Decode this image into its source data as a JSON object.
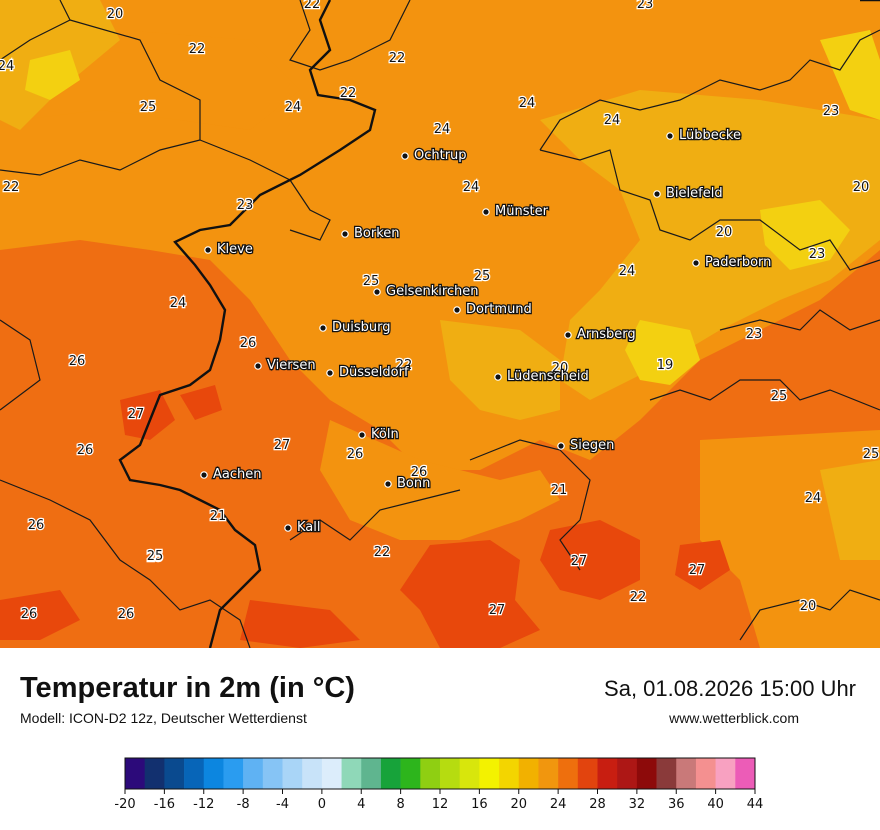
{
  "header": {
    "title": "Temperatur in 2m (in °C)",
    "model": "Modell: ICON-D2 12z, Deutscher Wetterdienst",
    "datetime": "Sa, 01.08.2026 15:00 Uhr",
    "website": "www.wetterblick.com"
  },
  "cities": [
    "Lübbecke",
    "Ochtrup",
    "Bielefeld",
    "Münster",
    "Paderborn",
    "Borken",
    "Kleve",
    "Gelsenkirchen",
    "Dortmund",
    "Duisburg",
    "Arnsberg",
    "Viersen",
    "Düsseldorf",
    "Lüdenscheid",
    "Köln",
    "Siegen",
    "Aachen",
    "Bonn",
    "Kall"
  ],
  "temperature_labels": [
    "22",
    "20",
    "23",
    "24",
    "22",
    "22",
    "25",
    "24",
    "24",
    "23",
    "24",
    "24",
    "22",
    "22",
    "23",
    "24",
    "20",
    "20",
    "23",
    "25",
    "24",
    "25",
    "24",
    "23",
    "26",
    "26",
    "19",
    "22",
    "20",
    "25",
    "27",
    "25",
    "26",
    "27",
    "26",
    "26",
    "25",
    "24",
    "21",
    "26",
    "21",
    "22",
    "27",
    "25",
    "26",
    "27",
    "22",
    "26",
    "27",
    "20"
  ],
  "legend": {
    "ticks": [
      "-20",
      "-16",
      "-12",
      "-8",
      "-4",
      "0",
      "4",
      "8",
      "12",
      "16",
      "20",
      "24",
      "28",
      "32",
      "36",
      "40",
      "44"
    ],
    "colors": [
      "#2c0a7a",
      "#12306f",
      "#0a4a8f",
      "#0765b8",
      "#0c86e0",
      "#2a9cf0",
      "#5fb2f3",
      "#86c4f5",
      "#a9d5f7",
      "#c8e3f9",
      "#dcedfb",
      "#8fd8b8",
      "#5fb58f",
      "#17a33a",
      "#2db51c",
      "#8fcf12",
      "#b6dc10",
      "#d8e60c",
      "#f3f200",
      "#f3d500",
      "#f2b100",
      "#f1960e",
      "#ee6f0d",
      "#e2440e",
      "#c81e11",
      "#ad1715",
      "#8d0a0a",
      "#8a3a3a",
      "#c97979",
      "#f49090",
      "#f8a1c1",
      "#ec5cb7"
    ]
  },
  "map_colors": {
    "base": "#ef6e12",
    "warm": "#e8480c",
    "mild": "#f3930f",
    "cool": "#f0ae12",
    "coolest": "#f3d011",
    "borders": "#1a1a1a"
  }
}
